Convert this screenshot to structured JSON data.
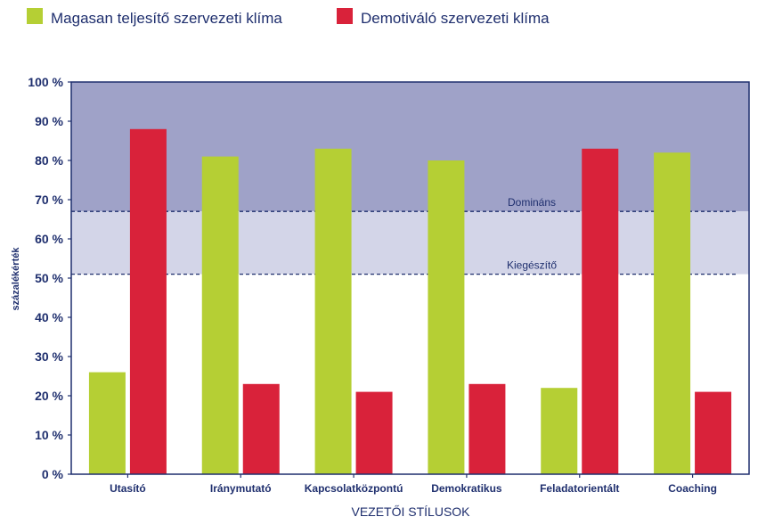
{
  "chart_data": {
    "type": "bar",
    "xlabel": "VEZETŐI STÍLUSOK",
    "ylabel": "százalékérték",
    "ylim": [
      0,
      100
    ],
    "yticks": [
      0,
      10,
      20,
      30,
      40,
      50,
      60,
      70,
      80,
      90,
      100
    ],
    "ytick_suffix": " %",
    "categories": [
      "Utasító",
      "Iránymutató",
      "Kapcsolatközpontú",
      "Demokratikus",
      "Feladatorientált",
      "Coaching"
    ],
    "series": [
      {
        "name": "Magasan teljesítő szervezeti klíma",
        "color": "#b5cf34",
        "values": [
          26,
          81,
          83,
          80,
          22,
          82
        ]
      },
      {
        "name": "Demotiváló szervezeti klíma",
        "color": "#d9223a",
        "values": [
          88,
          23,
          21,
          23,
          83,
          21
        ]
      }
    ],
    "bands": [
      {
        "from": 67,
        "to": 100,
        "color": "#9fa2c8"
      },
      {
        "from": 51,
        "to": 67,
        "color": "#d3d5e8"
      }
    ],
    "reference_lines": [
      {
        "value": 67,
        "label": "Domináns"
      },
      {
        "value": 51,
        "label": "Kiegészítő"
      }
    ],
    "legend": "top-left",
    "accent_color": "#1f2f6e"
  }
}
